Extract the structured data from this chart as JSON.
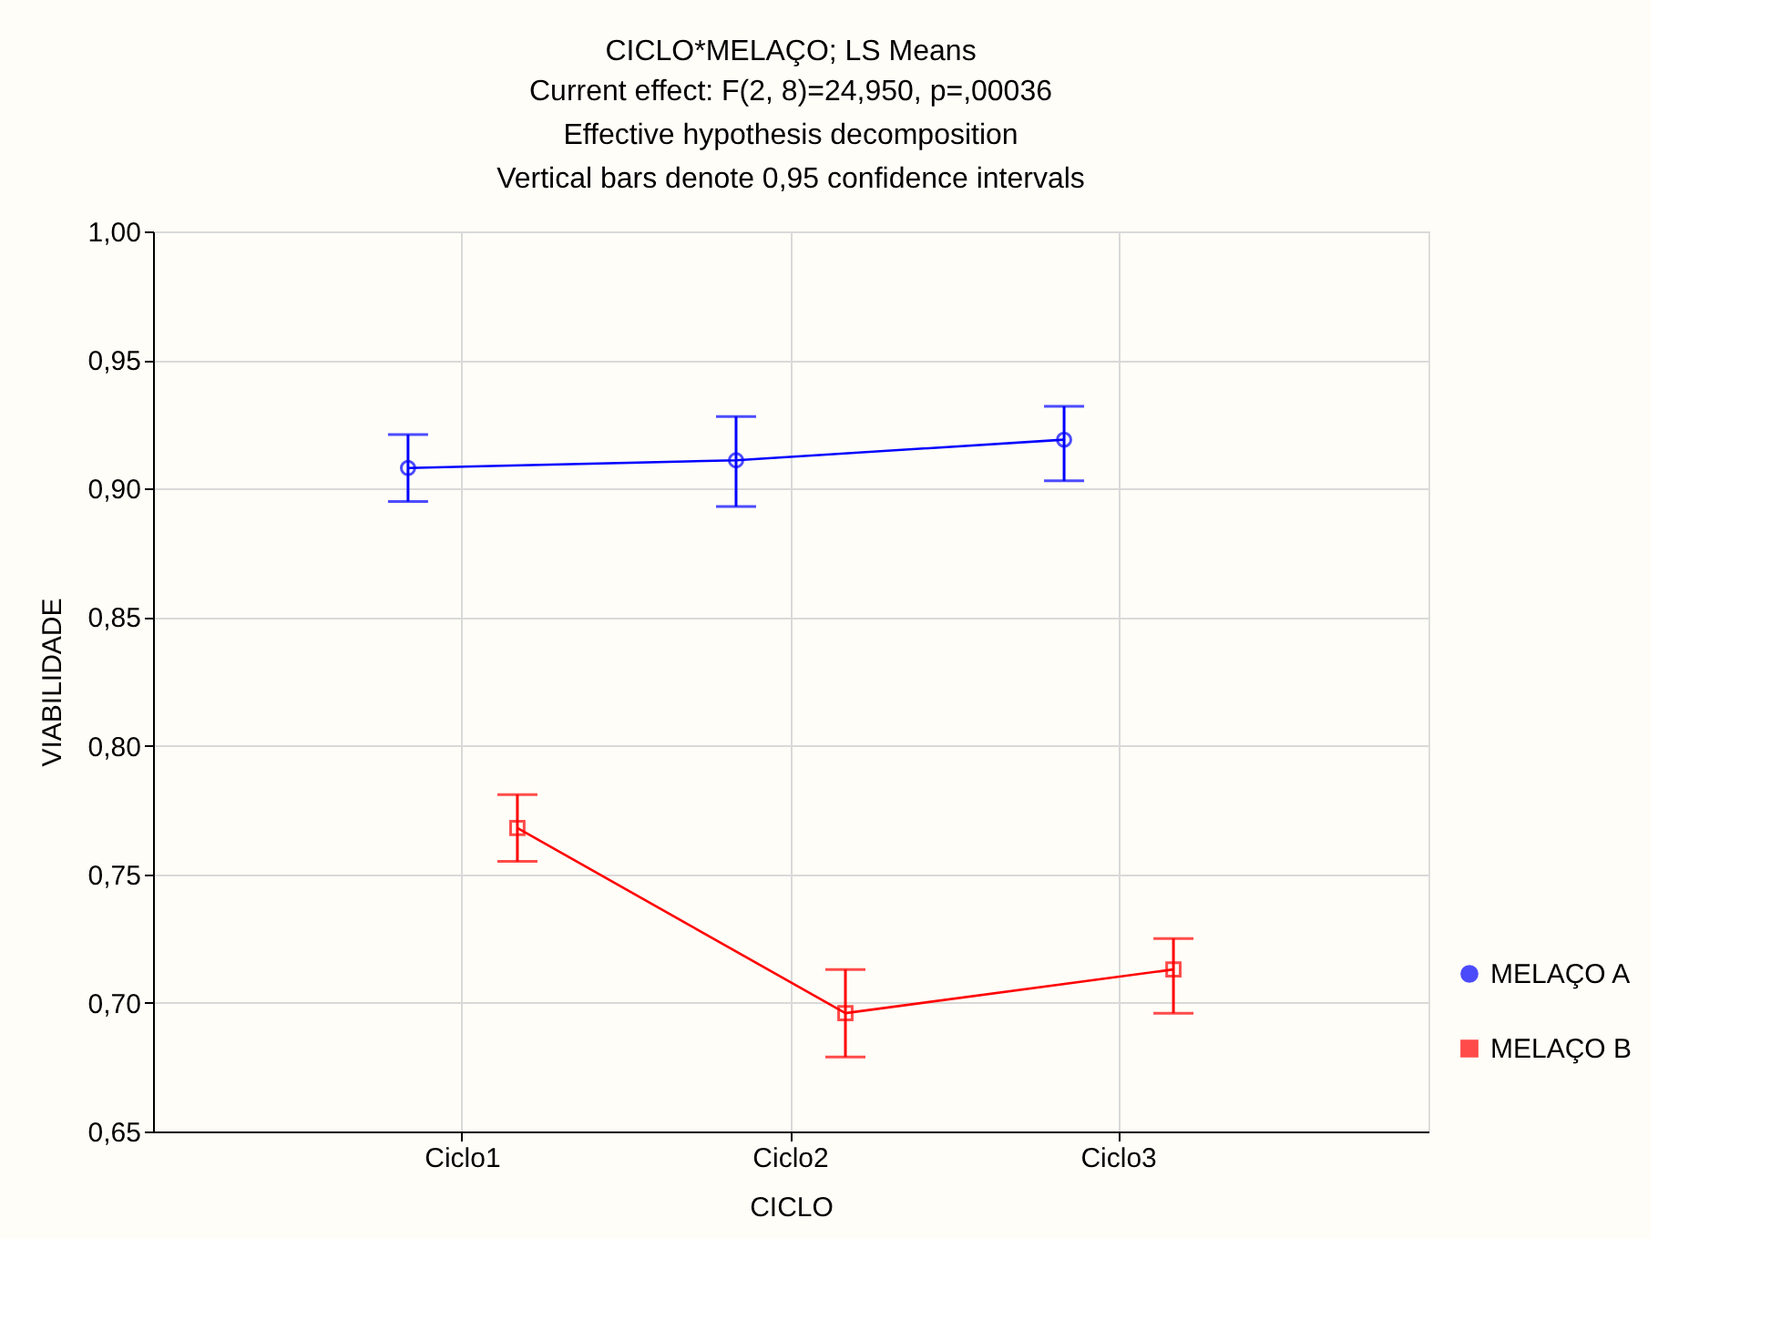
{
  "chart_data": {
    "type": "line",
    "title": "CICLO*MELAÇO; LS Means",
    "subtitle": "Current effect: F(2, 8)=24,950, p=,00036\nEffective hypothesis decomposition\nVertical bars denote 0,95 confidence intervals",
    "xlabel": "CICLO",
    "ylabel": "VIABILIDADE",
    "categories": [
      "Ciclo1",
      "Ciclo2",
      "Ciclo3"
    ],
    "series": [
      {
        "name": "MELAÇO A",
        "color": "#0000ff",
        "marker": "circle",
        "values": [
          0.908,
          0.911,
          0.919
        ],
        "errors": [
          [
            0.895,
            0.921
          ],
          [
            0.893,
            0.928
          ],
          [
            0.903,
            0.932
          ]
        ]
      },
      {
        "name": "MELAÇO B",
        "color": "#ff0000",
        "marker": "square",
        "values": [
          0.768,
          0.696,
          0.713
        ],
        "errors": [
          [
            0.755,
            0.781
          ],
          [
            0.679,
            0.713
          ],
          [
            0.696,
            0.725
          ]
        ]
      }
    ],
    "ylim": [
      0.65,
      1.0
    ],
    "yticks": [
      {
        "value": 0.65,
        "label": "0,65"
      },
      {
        "value": 0.7,
        "label": "0,70"
      },
      {
        "value": 0.75,
        "label": "0,75"
      },
      {
        "value": 0.8,
        "label": "0,80"
      },
      {
        "value": 0.85,
        "label": "0,85"
      },
      {
        "value": 0.9,
        "label": "0,90"
      },
      {
        "value": 0.95,
        "label": "0,95"
      },
      {
        "value": 1.0,
        "label": "1,00"
      }
    ],
    "grid": true,
    "legend": "bottom right",
    "line_style": "solid"
  }
}
